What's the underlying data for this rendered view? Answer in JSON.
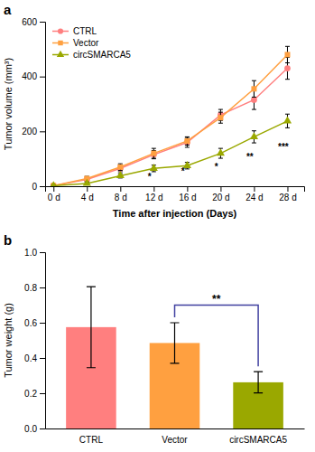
{
  "chart_data": [
    {
      "type": "line",
      "title": "a",
      "xlabel": "Time after injection (Days)",
      "ylabel": "Tumor volume (mm³)",
      "x": [
        0,
        4,
        8,
        12,
        16,
        20,
        24,
        28
      ],
      "xlim": [
        -1,
        30
      ],
      "xticks": [
        {
          "value": 0,
          "label": "0 d"
        },
        {
          "value": 4,
          "label": "4 d"
        },
        {
          "value": 8,
          "label": "8 d"
        },
        {
          "value": 12,
          "label": "12 d"
        },
        {
          "value": 16,
          "label": "16 d"
        },
        {
          "value": 20,
          "label": "20 d"
        },
        {
          "value": 24,
          "label": "24 d"
        },
        {
          "value": 28,
          "label": "28 d"
        }
      ],
      "ylim": [
        0,
        600
      ],
      "yticks": [
        0,
        200,
        400,
        600
      ],
      "grid": false,
      "legend": "upper left",
      "series": [
        {
          "name": "CTRL",
          "color": "#FF7F7F",
          "marker": "circle",
          "values": [
            2,
            25,
            65,
            115,
            160,
            260,
            315,
            430
          ],
          "errors": [
            2,
            8,
            12,
            15,
            18,
            20,
            35,
            40
          ]
        },
        {
          "name": "Vector",
          "color": "#FFA040",
          "marker": "square",
          "values": [
            2,
            28,
            70,
            120,
            165,
            250,
            355,
            480
          ],
          "errors": [
            2,
            8,
            12,
            18,
            15,
            20,
            30,
            30
          ]
        },
        {
          "name": "circSMARCA5",
          "color": "#9AA800",
          "marker": "triangle",
          "values": [
            2,
            10,
            38,
            65,
            75,
            120,
            180,
            238
          ],
          "errors": [
            2,
            5,
            8,
            12,
            12,
            18,
            22,
            25
          ]
        }
      ],
      "annotations": [
        {
          "text": "*",
          "x": 11.5,
          "y": 33
        },
        {
          "text": "*",
          "x": 15.5,
          "y": 53
        },
        {
          "text": "*",
          "x": 19.5,
          "y": 72
        },
        {
          "text": "**",
          "x": 23.5,
          "y": 108
        },
        {
          "text": "***",
          "x": 27.5,
          "y": 143
        }
      ]
    },
    {
      "type": "bar",
      "title": "b",
      "ylabel": "Tumor weight (g)",
      "categories": [
        "CTRL",
        "Vector",
        "circSMARCA5"
      ],
      "values": [
        0.575,
        0.485,
        0.262
      ],
      "errors_pos": [
        0.23,
        0.115,
        0.06
      ],
      "errors_neg": [
        0.23,
        0.115,
        0.06
      ],
      "colors": [
        "#FF7F7F",
        "#FFA040",
        "#9AA800"
      ],
      "ylim": [
        0,
        1.0
      ],
      "yticks": [
        {
          "value": 0,
          "label": "0.0"
        },
        0.2,
        0.4,
        0.6,
        0.8,
        {
          "value": 1,
          "label": "1.0"
        }
      ],
      "grid": false,
      "annotations": [
        {
          "text": "**",
          "x": [
            "Vector",
            "circSMARCA5"
          ],
          "y": 0.7,
          "color": "#4040A0"
        }
      ]
    }
  ]
}
